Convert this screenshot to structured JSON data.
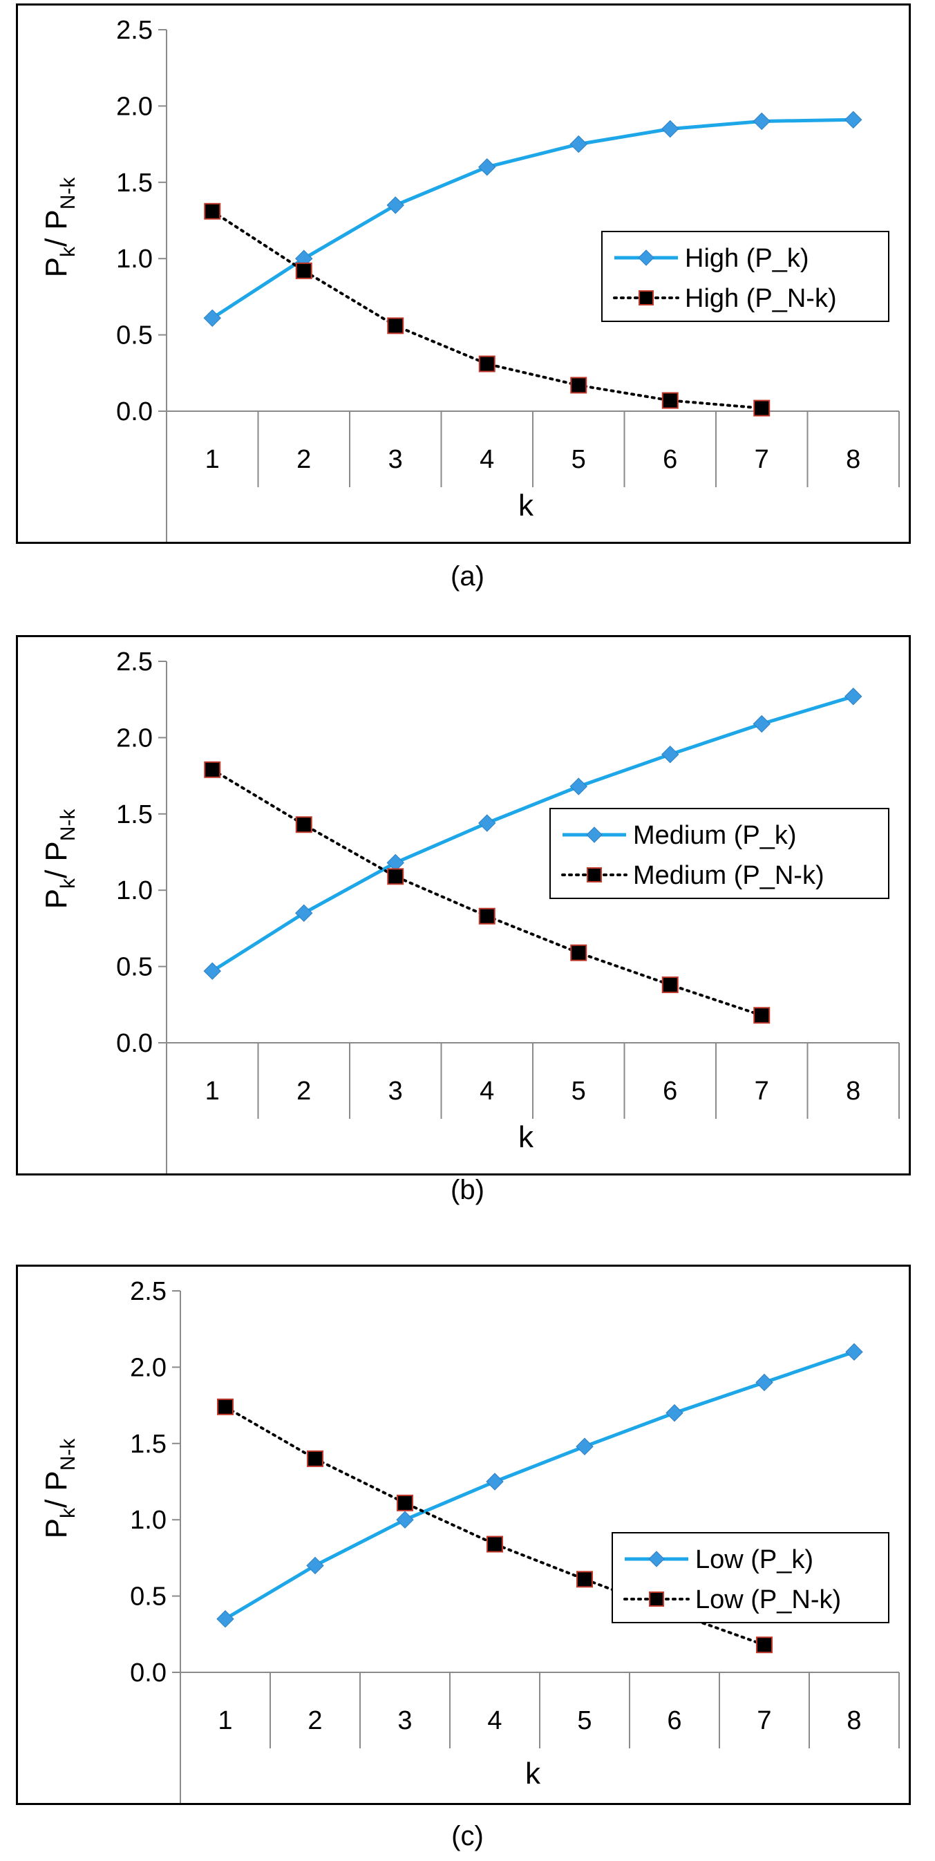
{
  "colors": {
    "pk_line": "#1ea7e8",
    "pk_marker": "#3a9be3",
    "pnk_line": "#000000",
    "pnk_marker_fill": "#000000",
    "pnk_marker_edge": "#c0392b"
  },
  "chart_data": [
    {
      "type": "line",
      "caption": "(a)",
      "xlabel": "k",
      "ylabel": {
        "base1": "P",
        "sub1": "k",
        "sep": "/ ",
        "base2": "P",
        "sub2": "N-k"
      },
      "categories": [
        "1",
        "2",
        "3",
        "4",
        "5",
        "6",
        "7",
        "8"
      ],
      "yticks": [
        "0.0",
        "0.5",
        "1.0",
        "1.5",
        "2.0",
        "2.5"
      ],
      "ylim": [
        0,
        2.5
      ],
      "grid": false,
      "legend_position": "right",
      "series": [
        {
          "name": "High (P_k)",
          "values": [
            0.61,
            1.0,
            1.35,
            1.6,
            1.75,
            1.85,
            1.9,
            1.91
          ]
        },
        {
          "name": "High (P_N-k)",
          "values": [
            1.31,
            0.92,
            0.56,
            0.31,
            0.17,
            0.07,
            0.02,
            null
          ]
        }
      ]
    },
    {
      "type": "line",
      "caption": "(b)",
      "xlabel": "k",
      "ylabel": {
        "base1": "P",
        "sub1": "k",
        "sep": "/ ",
        "base2": "P",
        "sub2": "N-k"
      },
      "categories": [
        "1",
        "2",
        "3",
        "4",
        "5",
        "6",
        "7",
        "8"
      ],
      "yticks": [
        "0.0",
        "0.5",
        "1.0",
        "1.5",
        "2.0",
        "2.5"
      ],
      "ylim": [
        0,
        2.5
      ],
      "grid": false,
      "legend_position": "right",
      "series": [
        {
          "name": "Medium (P_k)",
          "values": [
            0.47,
            0.85,
            1.18,
            1.44,
            1.68,
            1.89,
            2.09,
            2.27
          ]
        },
        {
          "name": "Medium (P_N-k)",
          "values": [
            1.79,
            1.43,
            1.09,
            0.83,
            0.59,
            0.38,
            0.18,
            null
          ]
        }
      ]
    },
    {
      "type": "line",
      "caption": "(c)",
      "xlabel": "k",
      "ylabel": {
        "base1": "P",
        "sub1": "k",
        "sep": "/ ",
        "base2": "P",
        "sub2": "N-k"
      },
      "categories": [
        "1",
        "2",
        "3",
        "4",
        "5",
        "6",
        "7",
        "8"
      ],
      "yticks": [
        "0.0",
        "0.5",
        "1.0",
        "1.5",
        "2.0",
        "2.5"
      ],
      "ylim": [
        0,
        2.5
      ],
      "grid": false,
      "legend_position": "right",
      "series": [
        {
          "name": "Low (P_k)",
          "values": [
            0.35,
            0.7,
            1.0,
            1.25,
            1.48,
            1.7,
            1.9,
            2.1
          ]
        },
        {
          "name": "Low (P_N-k)",
          "values": [
            1.74,
            1.4,
            1.11,
            0.84,
            0.61,
            0.39,
            0.18,
            null
          ]
        }
      ]
    }
  ]
}
